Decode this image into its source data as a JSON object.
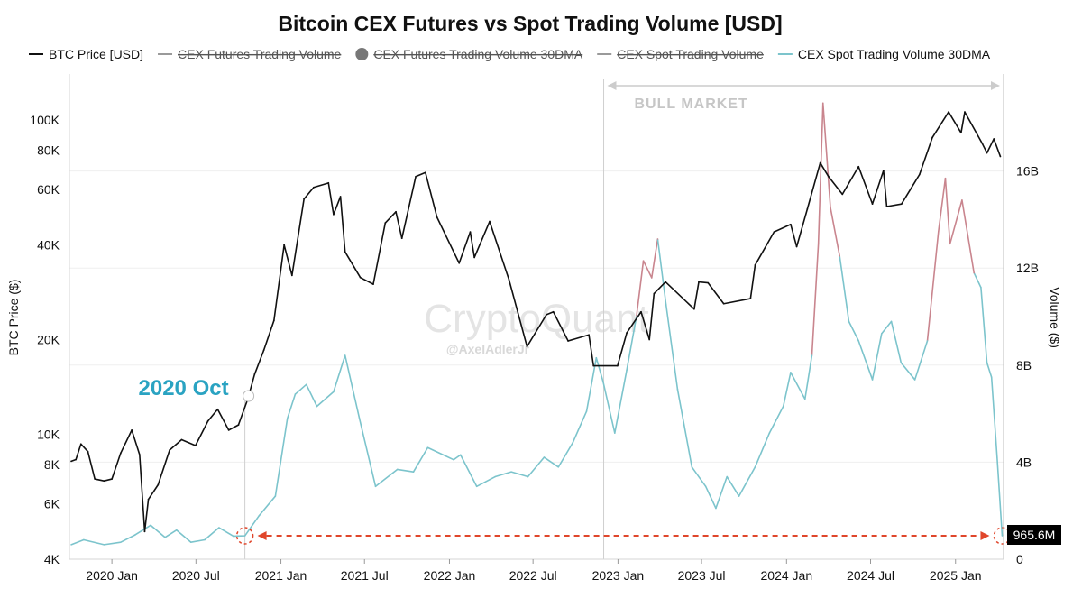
{
  "chart_data": {
    "type": "line",
    "title": "Bitcoin CEX Futures vs Spot Trading Volume [USD]",
    "legend": {
      "placement": "top",
      "entries": [
        {
          "name": "BTC Price [USD]",
          "color": "#111111",
          "marker": "line",
          "hidden": false
        },
        {
          "name": "CEX Futures Trading Volume",
          "color": "#9a9a9a",
          "marker": "line",
          "hidden": true
        },
        {
          "name": "CEX Futures Trading Volume 30DMA",
          "color": "#777777",
          "marker": "dot",
          "hidden": true
        },
        {
          "name": "CEX Spot Trading Volume",
          "color": "#9a9a9a",
          "marker": "line",
          "hidden": true
        },
        {
          "name": "CEX Spot Trading Volume 30DMA",
          "color": "#7cc4cc",
          "marker": "line",
          "hidden": false
        }
      ]
    },
    "x_axis": {
      "type": "date",
      "range": [
        "2019-10-01",
        "2025-04-15"
      ],
      "ticks": [
        {
          "date": "2020-01-01",
          "label": "2020 Jan"
        },
        {
          "date": "2020-07-01",
          "label": "2020 Jul"
        },
        {
          "date": "2021-01-01",
          "label": "2021 Jan"
        },
        {
          "date": "2021-07-01",
          "label": "2021 Jul"
        },
        {
          "date": "2022-01-01",
          "label": "2022 Jan"
        },
        {
          "date": "2022-07-01",
          "label": "2022 Jul"
        },
        {
          "date": "2023-01-01",
          "label": "2023 Jan"
        },
        {
          "date": "2023-07-01",
          "label": "2023 Jul"
        },
        {
          "date": "2024-01-01",
          "label": "2024 Jan"
        },
        {
          "date": "2024-07-01",
          "label": "2024 Jul"
        },
        {
          "date": "2025-01-01",
          "label": "2025 Jan"
        }
      ]
    },
    "y_left": {
      "label": "BTC Price ($)",
      "scale": "log",
      "range": [
        4000,
        140000
      ],
      "ticks": [
        {
          "value": 4000,
          "label": "4K"
        },
        {
          "value": 6000,
          "label": "6K"
        },
        {
          "value": 8000,
          "label": "8K"
        },
        {
          "value": 10000,
          "label": "10K"
        },
        {
          "value": 20000,
          "label": "20K"
        },
        {
          "value": 40000,
          "label": "40K"
        },
        {
          "value": 60000,
          "label": "60K"
        },
        {
          "value": 80000,
          "label": "80K"
        },
        {
          "value": 100000,
          "label": "100K"
        }
      ]
    },
    "y_right": {
      "label": "Volume ($)",
      "scale": "linear",
      "range": [
        0,
        20000000000
      ],
      "ticks": [
        {
          "value": 0,
          "label": "0"
        },
        {
          "value": 4000000000,
          "label": "4B"
        },
        {
          "value": 8000000000,
          "label": "8B"
        },
        {
          "value": 12000000000,
          "label": "12B"
        },
        {
          "value": 16000000000,
          "label": "16B"
        }
      ]
    },
    "grid": {
      "horizontal": true,
      "vertical": false
    },
    "series": [
      {
        "name": "BTC Price [USD]",
        "axis": "left",
        "color": "#111111",
        "points": [
          [
            "2019-10-05",
            8200
          ],
          [
            "2019-10-15",
            8300
          ],
          [
            "2019-10-26",
            9300
          ],
          [
            "2019-11-10",
            8800
          ],
          [
            "2019-11-25",
            7200
          ],
          [
            "2019-12-15",
            7100
          ],
          [
            "2020-01-01",
            7200
          ],
          [
            "2020-01-20",
            8700
          ],
          [
            "2020-02-13",
            10300
          ],
          [
            "2020-03-01",
            8600
          ],
          [
            "2020-03-12",
            4900
          ],
          [
            "2020-03-20",
            6200
          ],
          [
            "2020-04-10",
            6900
          ],
          [
            "2020-05-05",
            8900
          ],
          [
            "2020-05-31",
            9600
          ],
          [
            "2020-06-30",
            9200
          ],
          [
            "2020-07-27",
            11000
          ],
          [
            "2020-08-17",
            12000
          ],
          [
            "2020-09-10",
            10300
          ],
          [
            "2020-10-01",
            10700
          ],
          [
            "2020-10-21",
            12900
          ],
          [
            "2020-11-05",
            15500
          ],
          [
            "2020-11-25",
            18500
          ],
          [
            "2020-12-17",
            23000
          ],
          [
            "2021-01-08",
            40000
          ],
          [
            "2021-01-25",
            32000
          ],
          [
            "2021-02-20",
            56000
          ],
          [
            "2021-03-13",
            61000
          ],
          [
            "2021-04-14",
            63000
          ],
          [
            "2021-04-25",
            50000
          ],
          [
            "2021-05-10",
            57000
          ],
          [
            "2021-05-20",
            38000
          ],
          [
            "2021-06-22",
            31500
          ],
          [
            "2021-07-20",
            30000
          ],
          [
            "2021-08-15",
            47000
          ],
          [
            "2021-09-07",
            51000
          ],
          [
            "2021-09-20",
            42000
          ],
          [
            "2021-10-20",
            66000
          ],
          [
            "2021-11-10",
            68000
          ],
          [
            "2021-12-05",
            49000
          ],
          [
            "2022-01-22",
            35000
          ],
          [
            "2022-02-15",
            44000
          ],
          [
            "2022-02-24",
            36500
          ],
          [
            "2022-03-29",
            47500
          ],
          [
            "2022-05-10",
            31000
          ],
          [
            "2022-06-18",
            19000
          ],
          [
            "2022-07-30",
            24000
          ],
          [
            "2022-08-14",
            24500
          ],
          [
            "2022-09-15",
            19800
          ],
          [
            "2022-10-30",
            20700
          ],
          [
            "2022-11-09",
            16500
          ],
          [
            "2022-12-31",
            16500
          ],
          [
            "2023-01-20",
            21000
          ],
          [
            "2023-02-20",
            24500
          ],
          [
            "2023-03-10",
            20000
          ],
          [
            "2023-03-20",
            28000
          ],
          [
            "2023-04-14",
            30500
          ],
          [
            "2023-06-15",
            25000
          ],
          [
            "2023-06-25",
            30500
          ],
          [
            "2023-07-15",
            30300
          ],
          [
            "2023-08-18",
            26000
          ],
          [
            "2023-10-15",
            27000
          ],
          [
            "2023-10-25",
            34500
          ],
          [
            "2023-12-05",
            44000
          ],
          [
            "2024-01-10",
            46500
          ],
          [
            "2024-01-23",
            39500
          ],
          [
            "2024-02-15",
            52000
          ],
          [
            "2024-03-14",
            73000
          ],
          [
            "2024-04-01",
            66000
          ],
          [
            "2024-05-01",
            58000
          ],
          [
            "2024-06-05",
            71000
          ],
          [
            "2024-07-05",
            54000
          ],
          [
            "2024-07-29",
            69000
          ],
          [
            "2024-08-05",
            53000
          ],
          [
            "2024-09-06",
            54000
          ],
          [
            "2024-10-15",
            67000
          ],
          [
            "2024-11-12",
            88000
          ],
          [
            "2024-12-17",
            106000
          ],
          [
            "2025-01-13",
            91000
          ],
          [
            "2025-01-21",
            106000
          ],
          [
            "2025-02-28",
            84000
          ],
          [
            "2025-03-10",
            78500
          ],
          [
            "2025-03-25",
            87000
          ],
          [
            "2025-04-08",
            76500
          ]
        ]
      },
      {
        "name": "CEX Spot Trading Volume 30DMA",
        "axis": "right",
        "color": "#7cc4cc",
        "highlight_color": "#c9858e",
        "highlight_above": 11500000000,
        "points": [
          [
            "2019-10-05",
            600000000
          ],
          [
            "2019-11-01",
            800000000
          ],
          [
            "2019-12-15",
            600000000
          ],
          [
            "2020-01-20",
            700000000
          ],
          [
            "2020-02-20",
            1000000000
          ],
          [
            "2020-03-25",
            1400000000
          ],
          [
            "2020-04-25",
            900000000
          ],
          [
            "2020-05-20",
            1200000000
          ],
          [
            "2020-06-20",
            700000000
          ],
          [
            "2020-07-20",
            800000000
          ],
          [
            "2020-08-20",
            1300000000
          ],
          [
            "2020-09-20",
            950000000
          ],
          [
            "2020-10-15",
            965600000
          ],
          [
            "2020-11-15",
            1800000000
          ],
          [
            "2020-12-20",
            2600000000
          ],
          [
            "2021-01-15",
            5800000000
          ],
          [
            "2021-02-01",
            6800000000
          ],
          [
            "2021-02-25",
            7200000000
          ],
          [
            "2021-03-20",
            6300000000
          ],
          [
            "2021-04-25",
            6900000000
          ],
          [
            "2021-05-20",
            8400000000
          ],
          [
            "2021-06-20",
            5800000000
          ],
          [
            "2021-07-25",
            3000000000
          ],
          [
            "2021-09-10",
            3700000000
          ],
          [
            "2021-10-15",
            3600000000
          ],
          [
            "2021-11-15",
            4600000000
          ],
          [
            "2022-01-10",
            4100000000
          ],
          [
            "2022-01-25",
            4300000000
          ],
          [
            "2022-03-01",
            3000000000
          ],
          [
            "2022-04-10",
            3400000000
          ],
          [
            "2022-05-15",
            3600000000
          ],
          [
            "2022-06-20",
            3400000000
          ],
          [
            "2022-07-25",
            4200000000
          ],
          [
            "2022-08-25",
            3800000000
          ],
          [
            "2022-09-25",
            4800000000
          ],
          [
            "2022-10-25",
            6100000000
          ],
          [
            "2022-11-15",
            8300000000
          ],
          [
            "2022-11-30",
            7300000000
          ],
          [
            "2022-12-25",
            5200000000
          ],
          [
            "2023-01-20",
            7800000000
          ],
          [
            "2023-02-10",
            10000000000
          ],
          [
            "2023-02-25",
            12300000000
          ],
          [
            "2023-03-15",
            11600000000
          ],
          [
            "2023-03-28",
            13200000000
          ],
          [
            "2023-04-15",
            10500000000
          ],
          [
            "2023-05-10",
            7000000000
          ],
          [
            "2023-06-10",
            3800000000
          ],
          [
            "2023-07-10",
            3000000000
          ],
          [
            "2023-08-01",
            2100000000
          ],
          [
            "2023-08-25",
            3400000000
          ],
          [
            "2023-09-20",
            2600000000
          ],
          [
            "2023-10-25",
            3800000000
          ],
          [
            "2023-11-25",
            5200000000
          ],
          [
            "2023-12-25",
            6300000000
          ],
          [
            "2024-01-10",
            7700000000
          ],
          [
            "2024-02-10",
            6600000000
          ],
          [
            "2024-02-25",
            8400000000
          ],
          [
            "2024-03-10",
            13000000000
          ],
          [
            "2024-03-20",
            18800000000
          ],
          [
            "2024-04-05",
            14500000000
          ],
          [
            "2024-04-25",
            12500000000
          ],
          [
            "2024-05-15",
            9800000000
          ],
          [
            "2024-06-05",
            9000000000
          ],
          [
            "2024-07-05",
            7400000000
          ],
          [
            "2024-07-25",
            9300000000
          ],
          [
            "2024-08-15",
            9800000000
          ],
          [
            "2024-09-05",
            8100000000
          ],
          [
            "2024-10-05",
            7400000000
          ],
          [
            "2024-11-01",
            9000000000
          ],
          [
            "2024-11-25",
            13500000000
          ],
          [
            "2024-12-10",
            15700000000
          ],
          [
            "2024-12-20",
            13000000000
          ],
          [
            "2025-01-15",
            14800000000
          ],
          [
            "2025-02-10",
            11800000000
          ],
          [
            "2025-02-25",
            11200000000
          ],
          [
            "2025-03-10",
            8100000000
          ],
          [
            "2025-03-20",
            7500000000
          ],
          [
            "2025-04-01",
            4200000000
          ],
          [
            "2025-04-12",
            965600000
          ]
        ]
      }
    ],
    "annotations": {
      "oct_label": "2020 Oct",
      "oct_date": "2020-10-15",
      "bull_label": "BULL MARKET",
      "bull_start": "2022-12-01",
      "bull_end": "2025-04-15",
      "compare_start": "2020-10-15",
      "compare_end": "2025-04-12",
      "compare_value": 965600000,
      "compare_color": "#e0462b",
      "last_value_label": "965.6M"
    },
    "watermark": {
      "main": "CryptoQuant",
      "sub": "@AxelAdlerJr"
    }
  }
}
